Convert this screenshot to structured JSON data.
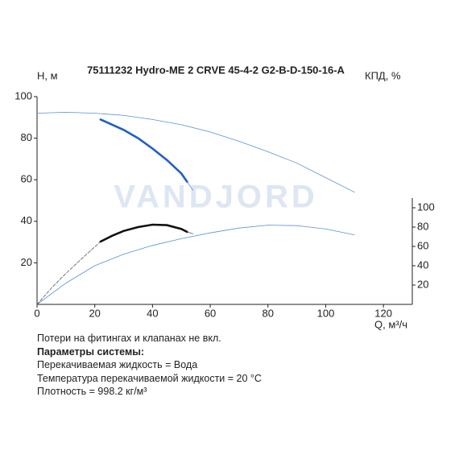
{
  "chart_data": {
    "type": "line",
    "title": "75111232 Hydro-ME 2 CRVE 45-4-2 G2-B-D-150-16-A",
    "ylabel": "H, м",
    "y2label": "КПД, %",
    "xlabel": "Q, м³/ч",
    "watermark": "VANDJORD",
    "xlim": [
      0,
      130
    ],
    "xticks": [
      0,
      20,
      40,
      60,
      80,
      100,
      120
    ],
    "ylim": [
      0,
      100
    ],
    "yticks": [
      20,
      40,
      60,
      80,
      100
    ],
    "y2lim": [
      0,
      215
    ],
    "y2ticks": [
      20,
      40,
      60,
      80,
      100
    ],
    "series": [
      {
        "color": "#5b8fd6",
        "line_width": 0.8,
        "axis": "y",
        "x": [
          0,
          10,
          20,
          30,
          40,
          50,
          60,
          70,
          80,
          90,
          100,
          110
        ],
        "values": [
          92,
          92.5,
          92,
          91,
          89,
          86.5,
          83,
          78.5,
          73.5,
          68,
          61,
          54
        ]
      },
      {
        "color": "#1f5fbf",
        "line_width": 2.6,
        "axis": "y",
        "x": [
          22,
          26,
          30,
          35,
          40,
          45,
          50,
          52
        ],
        "values": [
          89,
          86.5,
          84,
          80,
          75,
          69.5,
          63,
          59
        ]
      },
      {
        "color": "#5b8fd6",
        "line_width": 0.8,
        "axis": "y",
        "x": [
          52,
          54
        ],
        "values": [
          59,
          55
        ]
      },
      {
        "color": "#5b8fd6",
        "line_width": 0.8,
        "axis": "y2",
        "x": [
          0,
          10,
          20,
          30,
          40,
          50,
          60,
          70,
          80,
          90,
          100,
          110
        ],
        "values": [
          0,
          22,
          40,
          52,
          61,
          68,
          74,
          79,
          82,
          81.5,
          78,
          72
        ]
      },
      {
        "color": "#555555",
        "line_width": 0.8,
        "axis": "y2",
        "dash": true,
        "x": [
          0,
          5,
          10,
          15,
          22
        ],
        "values": [
          0,
          17,
          32,
          46,
          65
        ]
      },
      {
        "color": "#111111",
        "line_width": 2.6,
        "axis": "y2",
        "x": [
          22,
          26,
          30,
          35,
          40,
          45,
          50,
          52
        ],
        "values": [
          65,
          71,
          76,
          80,
          82.5,
          82,
          78,
          75
        ]
      },
      {
        "color": "#555555",
        "line_width": 0.8,
        "axis": "y2",
        "x": [
          52,
          54
        ],
        "values": [
          75,
          73
        ]
      }
    ]
  },
  "notes": [
    "Потери на фитингах и клапанах не вкл.",
    "Параметры системы:",
    "Перекачиваемая жидкость = Вода",
    "Температура перекачиваемой жидкости = 20 °C",
    "Плотность = 998.2 кг/м³"
  ]
}
